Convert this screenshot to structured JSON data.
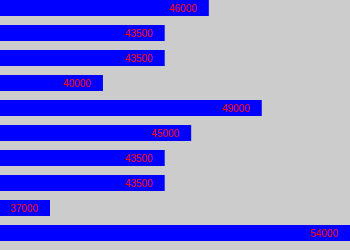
{
  "chart_data": {
    "type": "bar",
    "orientation": "horizontal",
    "categories": [
      null,
      null,
      null,
      null,
      null,
      null,
      null,
      null,
      null,
      null
    ],
    "values": [
      46000,
      43500,
      43500,
      40000,
      49000,
      45000,
      43500,
      43500,
      37000,
      54000
    ],
    "color": "#0000ff",
    "xlim": [
      34167,
      54000
    ],
    "data_labels": true,
    "tick_labels": false
  }
}
